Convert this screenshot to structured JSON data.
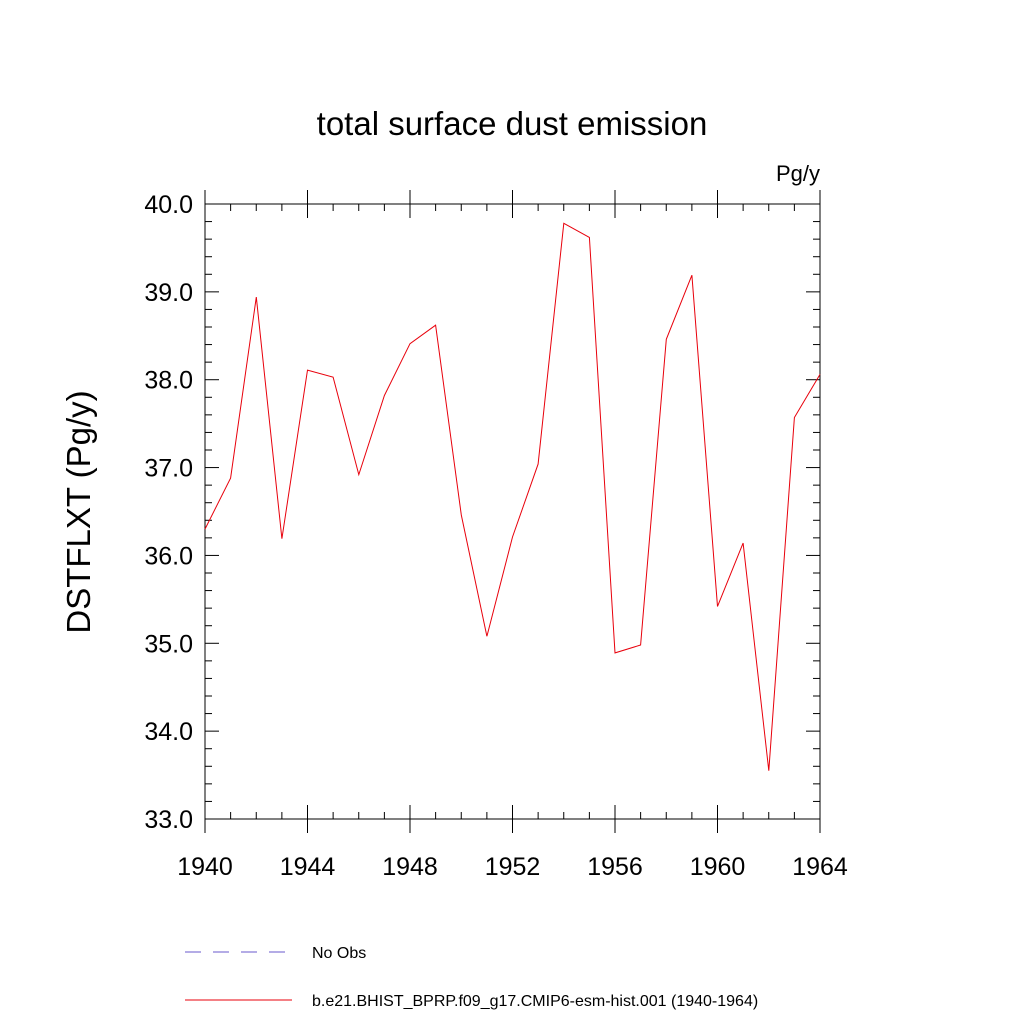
{
  "chart_data": {
    "type": "line",
    "title": "total surface dust emission",
    "units_label": "Pg/y",
    "ylabel": "DSTFLXT  (Pg/y)",
    "xlabel": "",
    "xlim": [
      1940,
      1964
    ],
    "ylim": [
      33.0,
      40.0
    ],
    "x_ticks": [
      1940,
      1944,
      1948,
      1952,
      1956,
      1960,
      1964
    ],
    "x_tick_labels": [
      "1940",
      "1944",
      "1948",
      "1952",
      "1956",
      "1960",
      "1964"
    ],
    "y_ticks": [
      33.0,
      34.0,
      35.0,
      36.0,
      37.0,
      38.0,
      39.0,
      40.0
    ],
    "y_tick_labels": [
      "33.0",
      "34.0",
      "35.0",
      "36.0",
      "37.0",
      "38.0",
      "39.0",
      "40.0"
    ],
    "grid": false,
    "legend_position": "bottom",
    "series": [
      {
        "name": "b.e21.BHIST_BPRP.f09_g17.CMIP6-esm-hist.001 (1940-1964)",
        "color": "#e8000b",
        "dash": "solid",
        "x": [
          1940,
          1941,
          1942,
          1943,
          1944,
          1945,
          1946,
          1947,
          1948,
          1949,
          1950,
          1951,
          1952,
          1953,
          1954,
          1955,
          1956,
          1957,
          1958,
          1959,
          1960,
          1961,
          1962,
          1963,
          1964
        ],
        "values": [
          36.3,
          36.88,
          38.94,
          36.19,
          38.11,
          38.03,
          36.92,
          37.82,
          38.41,
          38.62,
          36.46,
          35.08,
          36.21,
          37.04,
          39.78,
          39.62,
          34.89,
          34.98,
          38.46,
          39.19,
          35.42,
          36.14,
          33.55,
          37.57,
          38.06
        ]
      }
    ],
    "legend": [
      {
        "label": "No Obs",
        "color": "#6a5acd",
        "dash": "dashed"
      },
      {
        "label": "b.e21.BHIST_BPRP.f09_g17.CMIP6-esm-hist.001 (1940-1964)",
        "color": "#e8000b",
        "dash": "solid"
      }
    ]
  }
}
